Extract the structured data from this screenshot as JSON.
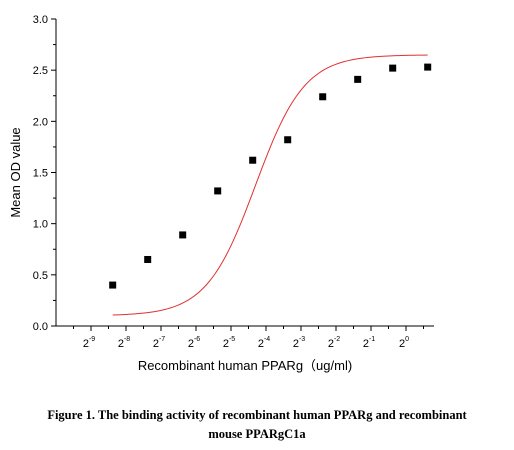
{
  "chart_data": {
    "type": "scatter",
    "xlabel": "Recombinant human  PPARg（ug/ml)",
    "ylabel": "Mean OD value",
    "x_scale": "log2",
    "x_tick_labels": [
      "2-9",
      "2-8",
      "2-7",
      "2-6",
      "2-5",
      "2-4",
      "2-3",
      "2-2",
      "2-1",
      "20"
    ],
    "x_tick_bases": [
      "2",
      "2",
      "2",
      "2",
      "2",
      "2",
      "2",
      "2",
      "2",
      "2"
    ],
    "x_tick_exponents": [
      "-9",
      "-8",
      "-7",
      "-6",
      "-5",
      "-4",
      "-3",
      "-2",
      "-1",
      "0"
    ],
    "x_tick_log2": [
      -9,
      -8,
      -7,
      -6,
      -5,
      -4,
      -3,
      -2,
      -1,
      0
    ],
    "xlim_log2": [
      -10,
      0.8
    ],
    "ylim": [
      0.0,
      3.0
    ],
    "y_ticks": [
      "0.0",
      "0.5",
      "1.0",
      "1.5",
      "2.0",
      "2.5",
      "3.0"
    ],
    "grid": false,
    "marker_color": "#000000",
    "fit_color": "#e03030",
    "points": [
      {
        "x_log2": -8.38,
        "y": 0.4
      },
      {
        "x_log2": -7.38,
        "y": 0.65
      },
      {
        "x_log2": -6.38,
        "y": 0.89
      },
      {
        "x_log2": -5.38,
        "y": 1.32
      },
      {
        "x_log2": -4.38,
        "y": 1.62
      },
      {
        "x_log2": -3.38,
        "y": 1.82
      },
      {
        "x_log2": -2.38,
        "y": 2.24
      },
      {
        "x_log2": -1.38,
        "y": 2.41
      },
      {
        "x_log2": -0.38,
        "y": 2.52
      },
      {
        "x_log2": 0.62,
        "y": 2.53
      }
    ],
    "fit_curve": {
      "type": "logistic",
      "bottom": 0.1,
      "top": 2.65,
      "center_log2": -4.3,
      "slope": 0.7
    }
  },
  "caption": {
    "line1": "Figure 1. The binding activity of recombinant human PPARg and recombinant",
    "line2": "mouse PPARgC1a"
  }
}
